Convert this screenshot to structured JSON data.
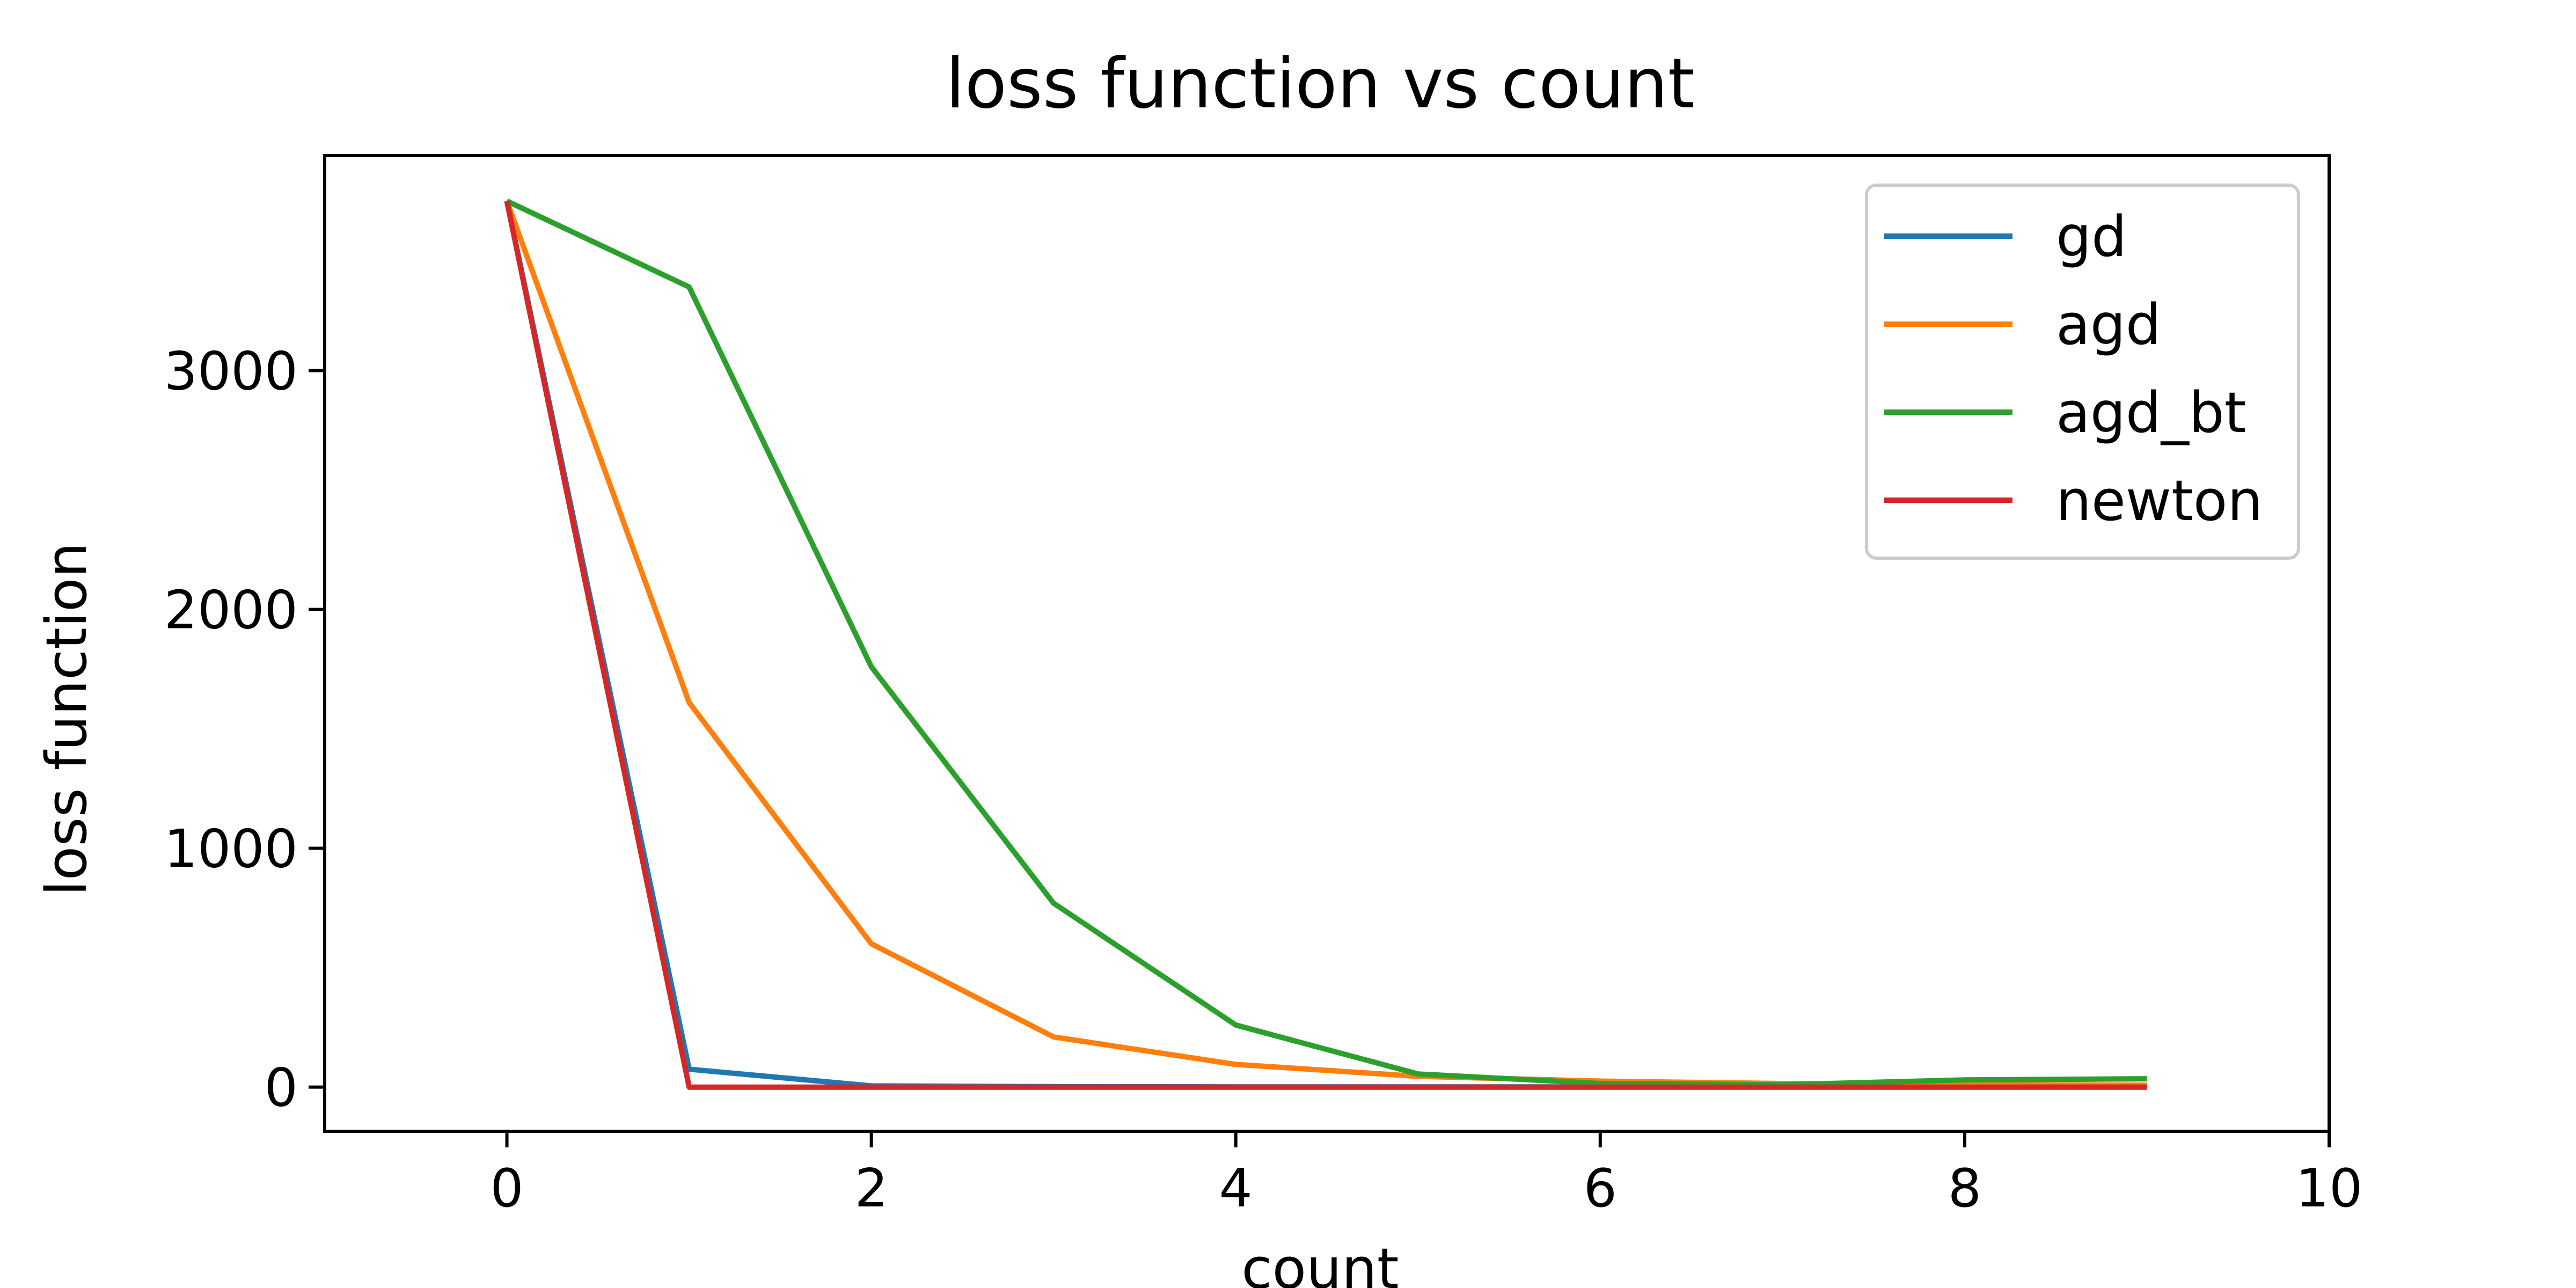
{
  "chart_data": {
    "type": "line",
    "title": "loss function vs count",
    "xlabel": "count",
    "ylabel": "loss function",
    "xlim": [
      -1,
      10
    ],
    "ylim": [
      -185,
      3900
    ],
    "xticks": [
      0,
      2,
      4,
      6,
      8,
      10
    ],
    "yticks": [
      0,
      1000,
      2000,
      3000
    ],
    "grid": false,
    "legend": "top-right",
    "x": [
      0,
      1,
      2,
      3,
      4,
      5,
      6,
      7,
      8,
      9
    ],
    "series": [
      {
        "name": "gd",
        "color": "#1f77b4",
        "values": [
          3710,
          75,
          5,
          2,
          1,
          1,
          1,
          1,
          1,
          1
        ]
      },
      {
        "name": "agd",
        "color": "#ff7f0e",
        "values": [
          3710,
          1610,
          600,
          210,
          95,
          45,
          25,
          15,
          10,
          8
        ]
      },
      {
        "name": "agd_bt",
        "color": "#2ca02c",
        "values": [
          3710,
          3350,
          1760,
          770,
          260,
          55,
          15,
          10,
          30,
          35
        ]
      },
      {
        "name": "newton",
        "color": "#d62728",
        "values": [
          3710,
          0,
          0,
          0,
          0,
          0,
          0,
          0,
          0,
          0
        ]
      }
    ]
  }
}
